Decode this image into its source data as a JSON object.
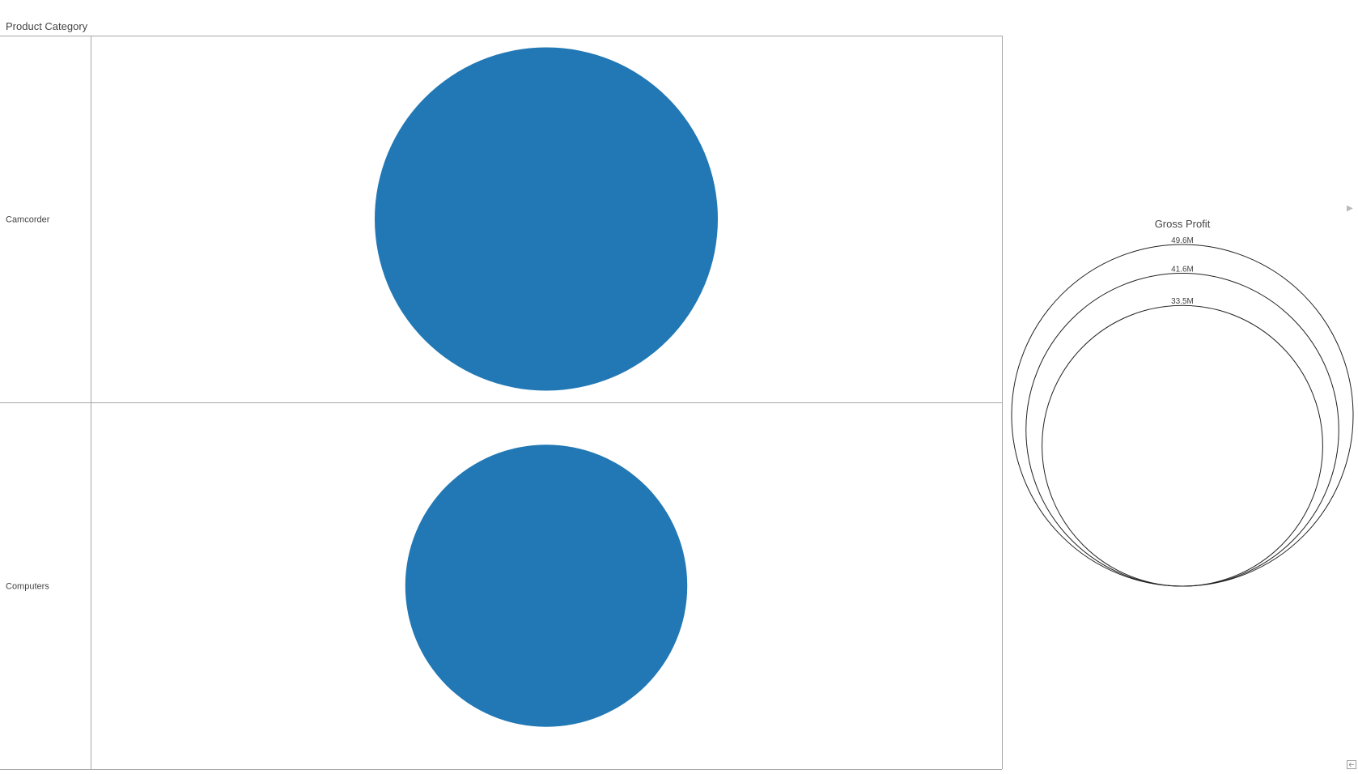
{
  "header": {
    "title": "Product Category"
  },
  "chart_data": {
    "type": "bubble",
    "row_dimension": "Product Category",
    "categories": [
      "Camcorder",
      "Computers"
    ],
    "size_measure": "Gross Profit",
    "values": [
      49600000,
      33500000
    ],
    "bubble_color": "#2178b4",
    "grid": true,
    "legend": {
      "title": "Gross Profit",
      "position": "right",
      "tick_values": [
        49600000,
        41600000,
        33500000
      ],
      "tick_labels": [
        "49.6M",
        "41.6M",
        "33.5M"
      ]
    }
  },
  "icons": {
    "expand": "expand-arrow-icon",
    "corner": "resize-icon"
  }
}
